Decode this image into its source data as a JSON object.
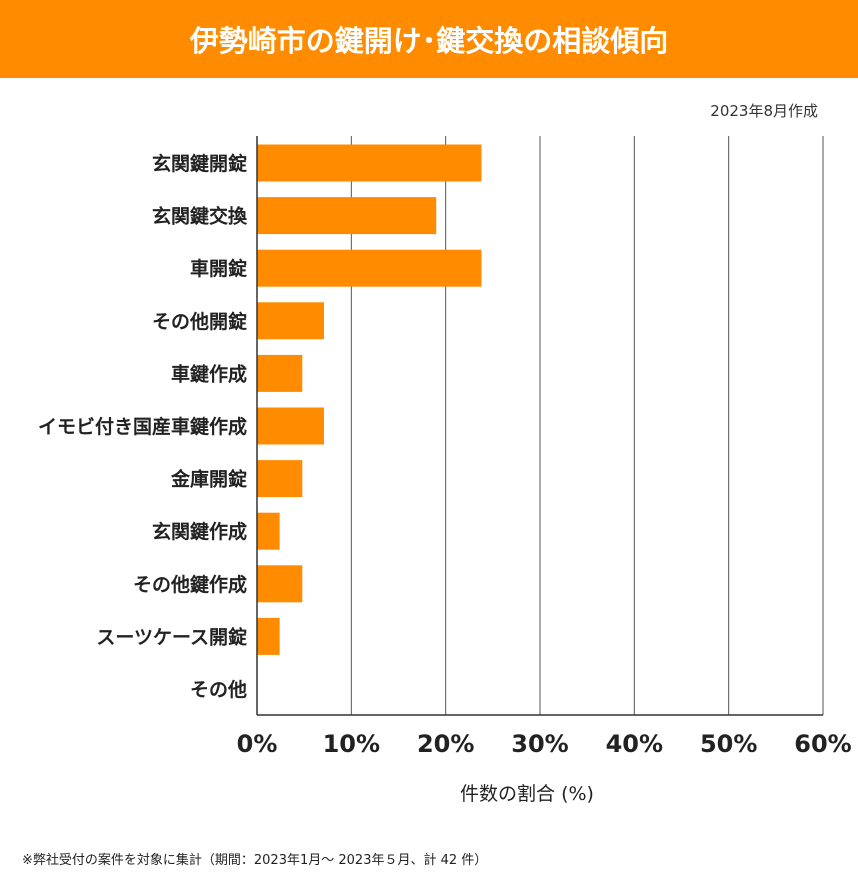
{
  "header": {
    "title": "伊勢崎市の鍵開け･鍵交換の相談傾向"
  },
  "date_note": "2023年8月作成",
  "footnote": "※弊社受付の案件を対象に集計（期間：2023年1月～ 2023年５月、計 42 件）",
  "colors": {
    "bar": "#ff8c00",
    "header": "#ff8c00"
  },
  "chart_data": {
    "type": "bar",
    "orientation": "horizontal",
    "categories": [
      "玄関鍵開錠",
      "玄関鍵交換",
      "車開錠",
      "その他開錠",
      "車鍵作成",
      "イモビ付き国産車鍵作成",
      "金庫開錠",
      "玄関鍵作成",
      "その他鍵作成",
      "スーツケース開錠",
      "その他"
    ],
    "values": [
      23.8,
      19.0,
      23.8,
      7.1,
      4.8,
      7.1,
      4.8,
      2.4,
      4.8,
      2.4,
      0
    ],
    "xlabel": "件数の割合 (%)",
    "xlim": [
      0,
      60
    ],
    "xticks": [
      "0%",
      "10%",
      "20%",
      "30%",
      "40%",
      "50%",
      "60%"
    ],
    "grid": "vertical"
  }
}
